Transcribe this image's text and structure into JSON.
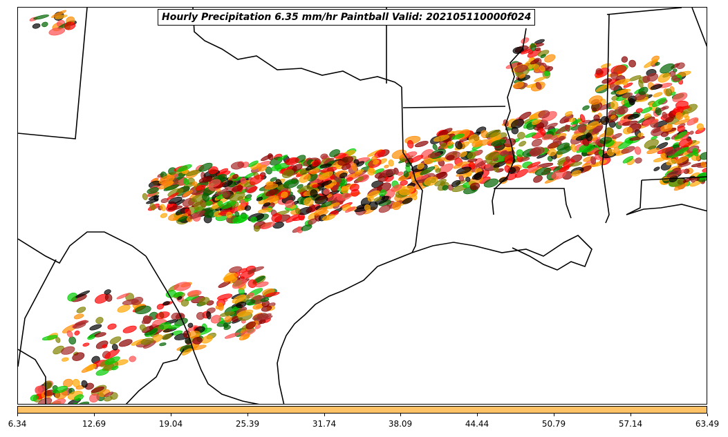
{
  "title": "Hourly Precipitation 6.35 mm/hr Paintball Valid: 202105110000f024",
  "colorbar": {
    "ticks": [
      "6.34",
      "12.69",
      "19.04",
      "25.39",
      "31.74",
      "38.09",
      "44.44",
      "50.79",
      "57.14",
      "63.49"
    ],
    "color": "#ffc266"
  },
  "paintball_colors": [
    "#ff0000",
    "#ff8c00",
    "#8b0000",
    "#00cc00",
    "#808000",
    "#ff4d4d",
    "#006400",
    "#a52a2a",
    "#000000",
    "#ffa500"
  ]
}
